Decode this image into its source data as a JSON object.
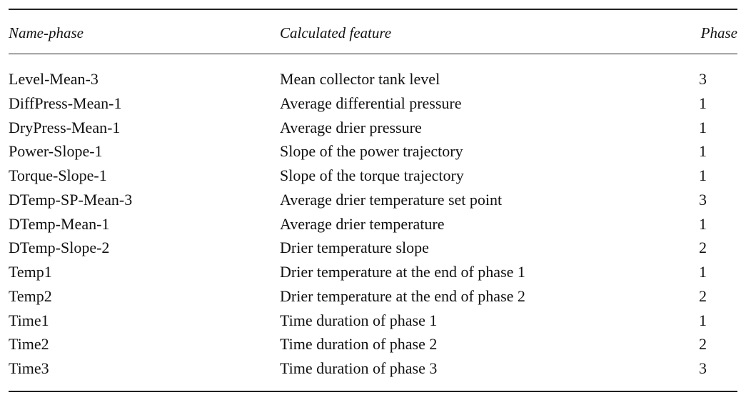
{
  "table": {
    "headers": {
      "name_phase": "Name-phase",
      "feature": "Calculated feature",
      "phase": "Phase"
    },
    "rows": [
      {
        "name": "Level-Mean-3",
        "feature": "Mean collector tank level",
        "phase": "3"
      },
      {
        "name": "DiffPress-Mean-1",
        "feature": "Average differential pressure",
        "phase": "1"
      },
      {
        "name": "DryPress-Mean-1",
        "feature": "Average drier pressure",
        "phase": "1"
      },
      {
        "name": "Power-Slope-1",
        "feature": "Slope of the power trajectory",
        "phase": "1"
      },
      {
        "name": "Torque-Slope-1",
        "feature": "Slope of the torque trajectory",
        "phase": "1"
      },
      {
        "name": "DTemp-SP-Mean-3",
        "feature": "Average drier temperature set point",
        "phase": "3"
      },
      {
        "name": "DTemp-Mean-1",
        "feature": "Average drier temperature",
        "phase": "1"
      },
      {
        "name": "DTemp-Slope-2",
        "feature": "Drier temperature slope",
        "phase": "2"
      },
      {
        "name": "Temp1",
        "feature": "Drier temperature at the end of phase 1",
        "phase": "1"
      },
      {
        "name": "Temp2",
        "feature": "Drier temperature at the end of phase 2",
        "phase": "2"
      },
      {
        "name": "Time1",
        "feature": "Time duration of phase 1",
        "phase": "1"
      },
      {
        "name": "Time2",
        "feature": "Time duration of phase 2",
        "phase": "2"
      },
      {
        "name": "Time3",
        "feature": "Time duration of phase 3",
        "phase": "3"
      }
    ]
  }
}
